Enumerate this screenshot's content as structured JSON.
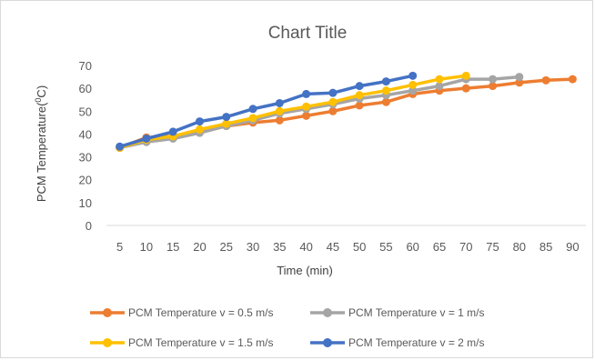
{
  "chart_data": {
    "type": "line",
    "title": "Chart Title",
    "xlabel": "Time (min)",
    "ylabel_main": "PCM Temperature(",
    "ylabel_sup": "0",
    "ylabel_tail": "C)",
    "ylim": [
      0,
      70
    ],
    "yticks": [
      0,
      10,
      20,
      30,
      40,
      50,
      60,
      70
    ],
    "x": [
      5,
      10,
      15,
      20,
      25,
      30,
      35,
      40,
      45,
      50,
      55,
      60,
      65,
      70,
      75,
      80,
      85,
      90
    ],
    "grid": false,
    "legend_position": "bottom",
    "series": [
      {
        "name": "PCM Temperature v = 0.5 m/s",
        "color": "#ED7D31",
        "x": [
          5,
          10,
          15,
          20,
          25,
          30,
          35,
          40,
          45,
          50,
          55,
          60,
          65,
          70,
          75,
          80,
          85,
          90
        ],
        "values": [
          34,
          38.5,
          39,
          41,
          43.5,
          45,
          46,
          48,
          50,
          52.5,
          54,
          57.5,
          59,
          60,
          61,
          62.5,
          63.5,
          64
        ]
      },
      {
        "name": "PCM Temperature v = 1 m/s",
        "color": "#A5A5A5",
        "x": [
          5,
          10,
          15,
          20,
          25,
          30,
          35,
          40,
          45,
          50,
          55,
          60,
          65,
          70,
          75,
          80
        ],
        "values": [
          34,
          36.5,
          38,
          40.5,
          43.5,
          46,
          49,
          51,
          53,
          55.5,
          57,
          59,
          61,
          64,
          64,
          65
        ]
      },
      {
        "name": "PCM Temperature v = 1.5 m/s",
        "color": "#FFC000",
        "x": [
          5,
          10,
          15,
          20,
          25,
          30,
          35,
          40,
          45,
          50,
          55,
          60,
          65,
          70
        ],
        "values": [
          34,
          37.5,
          39,
          42,
          44.5,
          47,
          50,
          52,
          54,
          57,
          59,
          61.5,
          64,
          65.5
        ]
      },
      {
        "name": "PCM Temperature v = 2 m/s",
        "color": "#4472C4",
        "x": [
          5,
          10,
          15,
          20,
          25,
          30,
          35,
          40,
          45,
          50,
          55,
          60
        ],
        "values": [
          34.5,
          38,
          41,
          45.5,
          47.5,
          51,
          53.5,
          57.5,
          58,
          61,
          63,
          65.5
        ]
      }
    ]
  }
}
